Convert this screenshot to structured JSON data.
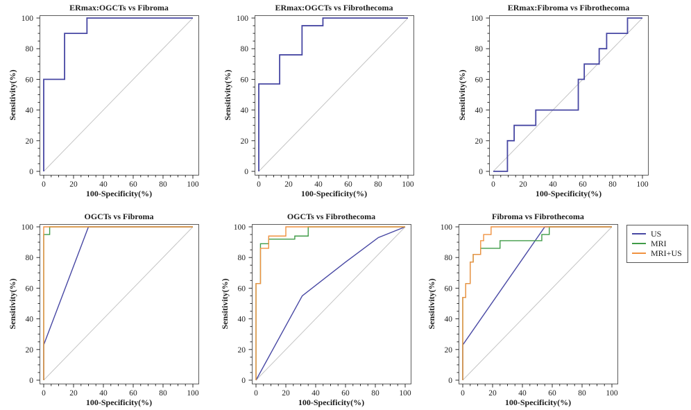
{
  "palette": {
    "us": "#4747a3",
    "mri": "#3f9b47",
    "mri_us": "#f0913f",
    "diagonal": "#c4c4c4",
    "frame": "#5a5a5a",
    "tick": "#2b2b2b",
    "text": "#1c1c1c"
  },
  "legend": {
    "items": [
      {
        "label": "US",
        "color": "us"
      },
      {
        "label": "MRI",
        "color": "mri"
      },
      {
        "label": "MRI+US",
        "color": "mri_us"
      }
    ]
  },
  "chart_data": {
    "type": "line",
    "description": "Six ROC curves (step plots) with gray chance diagonal",
    "xlabel": "100-Specificity(%)",
    "ylabel": "Sensitivity(%)",
    "xlim": [
      0,
      100
    ],
    "ylim": [
      0,
      100
    ],
    "ticks": [
      0,
      20,
      40,
      60,
      80,
      100
    ],
    "minor_tick_step": 5,
    "grid": false,
    "legend_position": "outside-top-right",
    "charts": [
      {
        "title": "ERmax:OGCTs vs Fibroma",
        "series": [
          {
            "name": "ERmax",
            "color": "us",
            "points": [
              [
                0,
                0
              ],
              [
                0,
                60
              ],
              [
                14,
                60
              ],
              [
                14,
                90
              ],
              [
                29,
                90
              ],
              [
                29,
                100
              ],
              [
                100,
                100
              ]
            ]
          }
        ]
      },
      {
        "title": "ERmax:OGCTs vs Fibrothecoma",
        "series": [
          {
            "name": "ERmax",
            "color": "us",
            "points": [
              [
                0,
                0
              ],
              [
                0,
                57
              ],
              [
                14,
                57
              ],
              [
                14,
                76
              ],
              [
                29,
                76
              ],
              [
                29,
                95
              ],
              [
                43,
                95
              ],
              [
                43,
                100
              ],
              [
                100,
                100
              ]
            ]
          }
        ]
      },
      {
        "title": "ERmax:Fibroma vs Fibrothecoma",
        "series": [
          {
            "name": "ERmax",
            "color": "us",
            "points": [
              [
                0,
                0
              ],
              [
                9.5,
                0
              ],
              [
                9.5,
                20
              ],
              [
                14,
                20
              ],
              [
                14,
                30
              ],
              [
                28.5,
                30
              ],
              [
                28.5,
                40
              ],
              [
                57,
                40
              ],
              [
                57,
                60
              ],
              [
                61,
                60
              ],
              [
                61,
                70
              ],
              [
                71,
                70
              ],
              [
                71,
                80
              ],
              [
                76,
                80
              ],
              [
                76,
                90
              ],
              [
                90,
                90
              ],
              [
                90,
                100
              ],
              [
                100,
                100
              ]
            ]
          }
        ]
      },
      {
        "title": "OGCTs vs Fibroma",
        "series": [
          {
            "name": "US",
            "color": "us",
            "points": [
              [
                0,
                0
              ],
              [
                0,
                23
              ],
              [
                30,
                100
              ],
              [
                100,
                100
              ]
            ]
          },
          {
            "name": "MRI",
            "color": "mri",
            "points": [
              [
                0,
                0
              ],
              [
                0,
                95
              ],
              [
                4,
                95
              ],
              [
                4,
                100
              ],
              [
                100,
                100
              ]
            ]
          },
          {
            "name": "MRI+US",
            "color": "mri_us",
            "points": [
              [
                0,
                0
              ],
              [
                0,
                100
              ],
              [
                100,
                100
              ]
            ]
          }
        ]
      },
      {
        "title": "OGCTs vs Fibrothecoma",
        "series": [
          {
            "name": "US",
            "color": "us",
            "points": [
              [
                0,
                0
              ],
              [
                31,
                55
              ],
              [
                60,
                77
              ],
              [
                82,
                93
              ],
              [
                100,
                100
              ]
            ]
          },
          {
            "name": "MRI",
            "color": "mri",
            "points": [
              [
                0,
                0
              ],
              [
                0,
                63
              ],
              [
                3,
                63
              ],
              [
                3,
                89
              ],
              [
                8.5,
                89
              ],
              [
                8.5,
                92
              ],
              [
                26,
                92
              ],
              [
                26,
                94
              ],
              [
                35,
                94
              ],
              [
                35,
                100
              ],
              [
                100,
                100
              ]
            ]
          },
          {
            "name": "MRI+US",
            "color": "mri_us",
            "points": [
              [
                0,
                0
              ],
              [
                0,
                63
              ],
              [
                3,
                63
              ],
              [
                3,
                86
              ],
              [
                8.5,
                86
              ],
              [
                8.5,
                94
              ],
              [
                20,
                94
              ],
              [
                20,
                100
              ],
              [
                100,
                100
              ]
            ]
          }
        ]
      },
      {
        "title": "Fibroma vs Fibrothecoma",
        "series": [
          {
            "name": "US",
            "color": "us",
            "points": [
              [
                0,
                0
              ],
              [
                0,
                23
              ],
              [
                55,
                100
              ],
              [
                100,
                100
              ]
            ]
          },
          {
            "name": "MRI",
            "color": "mri",
            "points": [
              [
                0,
                0
              ],
              [
                0,
                54
              ],
              [
                2,
                54
              ],
              [
                2,
                63
              ],
              [
                5,
                63
              ],
              [
                5,
                77
              ],
              [
                7,
                77
              ],
              [
                7,
                82
              ],
              [
                12,
                82
              ],
              [
                12,
                86
              ],
              [
                25,
                86
              ],
              [
                25,
                91
              ],
              [
                53,
                91
              ],
              [
                53,
                95
              ],
              [
                58,
                95
              ],
              [
                58,
                100
              ],
              [
                100,
                100
              ]
            ]
          },
          {
            "name": "MRI+US",
            "color": "mri_us",
            "points": [
              [
                0,
                0
              ],
              [
                0,
                54
              ],
              [
                2,
                54
              ],
              [
                2,
                63
              ],
              [
                5,
                63
              ],
              [
                5,
                77
              ],
              [
                7,
                77
              ],
              [
                7,
                82
              ],
              [
                12,
                82
              ],
              [
                12,
                91
              ],
              [
                14,
                91
              ],
              [
                14,
                95
              ],
              [
                19,
                95
              ],
              [
                19,
                100
              ],
              [
                100,
                100
              ]
            ]
          }
        ]
      }
    ]
  }
}
